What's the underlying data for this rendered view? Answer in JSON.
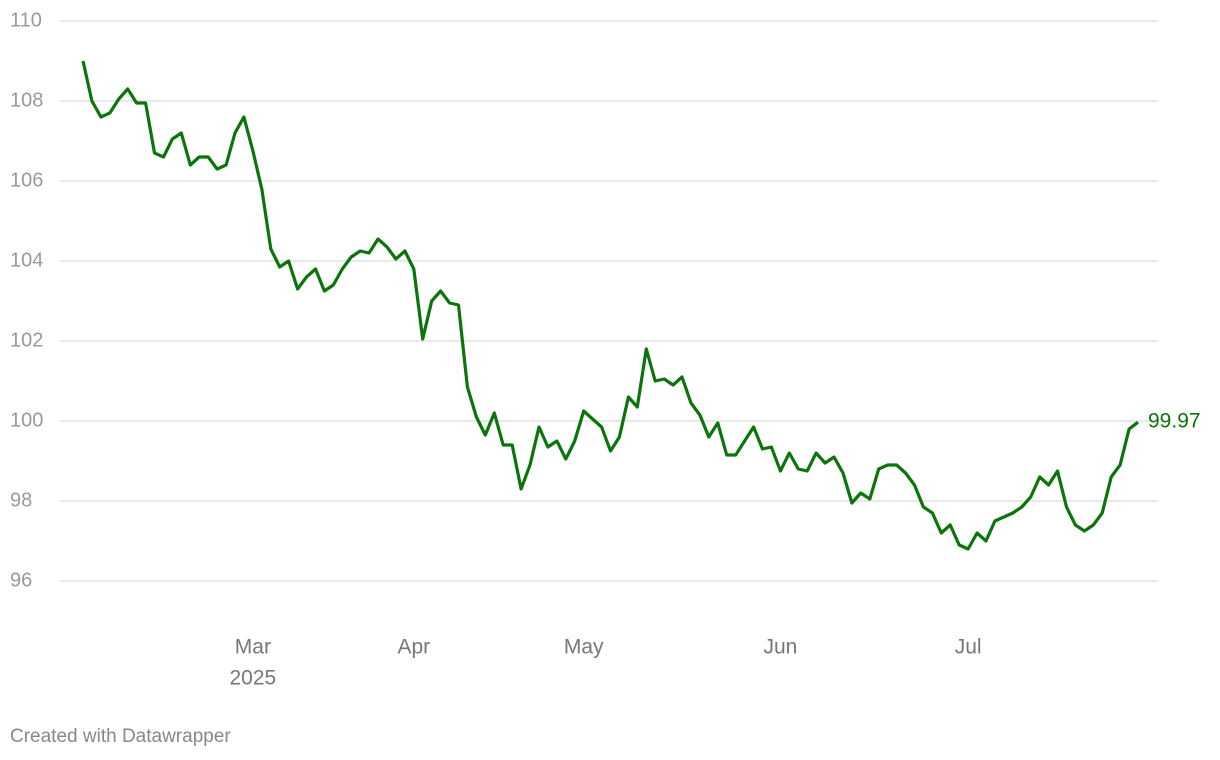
{
  "chart_data": {
    "type": "line",
    "x_sublabel": "2025",
    "credit": "Created with Datawrapper",
    "categories": [
      null,
      null,
      null,
      null,
      null,
      null,
      null,
      null,
      null,
      null,
      null,
      null,
      null,
      null,
      null,
      null,
      null,
      null,
      null,
      "Mar",
      null,
      null,
      null,
      null,
      null,
      null,
      null,
      null,
      null,
      null,
      null,
      null,
      null,
      null,
      null,
      null,
      null,
      "Apr",
      null,
      null,
      null,
      null,
      null,
      null,
      null,
      null,
      null,
      null,
      null,
      null,
      null,
      null,
      null,
      null,
      null,
      null,
      "May",
      null,
      null,
      null,
      null,
      null,
      null,
      null,
      null,
      null,
      null,
      null,
      null,
      null,
      null,
      null,
      null,
      null,
      null,
      null,
      null,
      null,
      "Jun",
      null,
      null,
      null,
      null,
      null,
      null,
      null,
      null,
      null,
      null,
      null,
      null,
      null,
      null,
      null,
      null,
      null,
      null,
      null,
      null,
      "Jul",
      null,
      null,
      null,
      null,
      null,
      null,
      null,
      null,
      null,
      null,
      null,
      null,
      null,
      null,
      null,
      null,
      null,
      null,
      null
    ],
    "values": [
      109.0,
      108.0,
      107.6,
      107.7,
      108.05,
      108.3,
      107.95,
      107.95,
      106.7,
      106.6,
      107.05,
      107.2,
      106.4,
      106.6,
      106.6,
      106.3,
      106.4,
      107.2,
      107.6,
      106.75,
      105.8,
      104.3,
      103.85,
      104.0,
      103.3,
      103.6,
      103.8,
      103.25,
      103.4,
      103.8,
      104.1,
      104.25,
      104.2,
      104.55,
      104.35,
      104.05,
      104.25,
      103.8,
      102.05,
      103.0,
      103.25,
      102.95,
      102.9,
      100.85,
      100.1,
      99.65,
      100.2,
      99.4,
      99.4,
      98.3,
      98.9,
      99.85,
      99.35,
      99.5,
      99.05,
      99.5,
      100.25,
      100.05,
      99.85,
      99.25,
      99.6,
      100.6,
      100.35,
      101.8,
      101.0,
      101.05,
      100.9,
      101.1,
      100.45,
      100.15,
      99.6,
      99.95,
      99.15,
      99.15,
      99.5,
      99.85,
      99.3,
      99.35,
      98.75,
      99.2,
      98.8,
      98.75,
      99.2,
      98.95,
      99.1,
      98.7,
      97.95,
      98.2,
      98.05,
      98.8,
      98.9,
      98.9,
      98.7,
      98.4,
      97.85,
      97.7,
      97.2,
      97.4,
      96.9,
      96.8,
      97.2,
      97.0,
      97.5,
      97.6,
      97.7,
      97.85,
      98.1,
      98.6,
      98.4,
      98.75,
      97.85,
      97.4,
      97.25,
      97.4,
      97.7,
      98.6,
      98.9,
      99.8,
      99.97
    ],
    "color": "#0b740b",
    "ylim": [
      96,
      110
    ],
    "yticks": [
      96,
      98,
      100,
      102,
      104,
      106,
      108,
      110
    ],
    "grid": true
  }
}
